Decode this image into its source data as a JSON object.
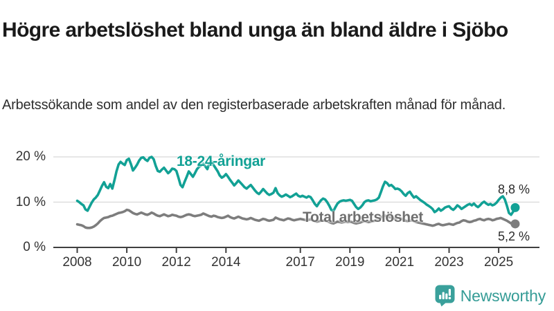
{
  "header": {
    "title": "Högre arbetslöshet bland unga än bland äldre i Sjöbo",
    "subtitle": "Arbetssökande som andel av den registerbaserade arbetskraften månad för månad."
  },
  "branding": {
    "logo_text": "Newsworthy",
    "logo_icon": "bar-chart-speech-bubble-icon",
    "logo_color": "#3aa09b"
  },
  "colors": {
    "youth_line": "#12a195",
    "total_line": "#7d7d7d",
    "total_label": "#6f6f6f",
    "grid": "#dedede",
    "axis": "#3f3f3f",
    "text": "#333333"
  },
  "chart_data": {
    "type": "line",
    "x_unit": "month",
    "x_start": "2008-01",
    "x_end": "2025-09",
    "x_ticks": [
      2008,
      2010,
      2012,
      2014,
      2017,
      2019,
      2021,
      2023,
      2025
    ],
    "y_ticks": [
      {
        "value": 0,
        "label": "0 %"
      },
      {
        "value": 10,
        "label": "10 %"
      },
      {
        "value": 20,
        "label": "20 %"
      }
    ],
    "ylim": [
      0,
      21
    ],
    "grid": "horizontal",
    "legend_position": "inline-labels",
    "series": [
      {
        "name": "18-24-åringar",
        "color": "#12a195",
        "end_label": "8,8 %",
        "end_value": 8.8,
        "values": [
          10.3,
          10.0,
          9.6,
          9.3,
          8.4,
          8.1,
          9.0,
          9.9,
          10.6,
          11.0,
          11.6,
          12.6,
          13.6,
          14.4,
          13.4,
          13.1,
          14.0,
          13.0,
          14.8,
          16.8,
          18.3,
          18.9,
          18.5,
          18.2,
          19.3,
          19.6,
          18.4,
          17.0,
          17.6,
          18.3,
          19.2,
          19.8,
          19.9,
          19.4,
          19.1,
          19.8,
          20.0,
          19.5,
          18.0,
          16.9,
          16.7,
          17.2,
          17.6,
          17.0,
          16.4,
          16.8,
          17.4,
          17.3,
          16.9,
          15.4,
          13.8,
          13.3,
          14.5,
          15.6,
          16.8,
          16.2,
          15.6,
          16.4,
          17.3,
          17.8,
          18.1,
          18.5,
          17.9,
          17.3,
          18.6,
          19.0,
          18.2,
          17.5,
          16.8,
          15.9,
          15.4,
          15.7,
          16.2,
          15.6,
          14.9,
          14.3,
          13.7,
          14.2,
          14.8,
          14.3,
          13.8,
          13.3,
          13.0,
          13.4,
          13.8,
          13.2,
          12.6,
          12.1,
          11.8,
          12.3,
          12.9,
          12.4,
          11.9,
          11.6,
          11.8,
          12.1,
          13.1,
          12.0,
          11.5,
          11.2,
          11.4,
          11.7,
          11.4,
          11.1,
          11.3,
          11.6,
          11.9,
          11.4,
          11.2,
          11.4,
          11.2,
          11.0,
          11.3,
          11.1,
          10.4,
          9.6,
          9.1,
          9.8,
          10.4,
          10.8,
          10.6,
          10.0,
          9.2,
          8.3,
          8.0,
          8.9,
          9.7,
          10.1,
          10.3,
          10.4,
          10.3,
          10.4,
          10.5,
          10.3,
          9.6,
          8.9,
          8.5,
          8.8,
          9.3,
          10.0,
          10.3,
          10.4,
          10.2,
          10.3,
          10.4,
          10.6,
          11.0,
          12.2,
          13.5,
          14.5,
          14.2,
          13.6,
          13.8,
          13.4,
          12.9,
          13.0,
          12.8,
          12.4,
          11.8,
          11.4,
          12.0,
          12.3,
          11.6,
          11.0,
          11.3,
          10.9,
          10.5,
          10.2,
          9.9,
          9.5,
          9.2,
          8.9,
          8.5,
          7.8,
          8.1,
          8.6,
          8.1,
          8.4,
          8.8,
          9.0,
          9.1,
          8.6,
          8.3,
          8.7,
          9.3,
          9.0,
          8.5,
          8.8,
          9.1,
          9.4,
          9.6,
          9.3,
          9.7,
          9.2,
          8.9,
          9.3,
          9.8,
          10.1,
          9.7,
          9.4,
          9.6,
          9.3,
          9.5,
          9.9,
          10.5,
          11.0,
          11.3,
          10.6,
          9.2,
          7.6,
          7.2,
          7.9,
          8.8
        ]
      },
      {
        "name": "Total arbetslöshet",
        "color": "#7d7d7d",
        "end_label": "5,2 %",
        "end_value": 5.2,
        "values": [
          5.1,
          5.0,
          4.9,
          4.7,
          4.4,
          4.3,
          4.3,
          4.4,
          4.6,
          4.9,
          5.3,
          5.8,
          6.2,
          6.5,
          6.6,
          6.7,
          6.9,
          7.0,
          7.2,
          7.4,
          7.6,
          7.7,
          7.8,
          8.0,
          8.3,
          8.2,
          7.9,
          7.6,
          7.4,
          7.3,
          7.5,
          7.7,
          7.5,
          7.3,
          7.2,
          7.4,
          7.7,
          7.5,
          7.2,
          7.0,
          6.9,
          7.1,
          7.3,
          7.1,
          6.9,
          7.0,
          7.2,
          7.1,
          7.0,
          6.8,
          6.7,
          6.8,
          7.0,
          7.2,
          7.3,
          7.2,
          7.0,
          6.9,
          7.0,
          7.1,
          7.2,
          7.5,
          7.3,
          7.1,
          6.9,
          6.8,
          7.0,
          6.9,
          6.7,
          6.6,
          6.5,
          6.6,
          6.8,
          7.0,
          6.7,
          6.5,
          6.4,
          6.6,
          6.8,
          6.6,
          6.4,
          6.3,
          6.2,
          6.3,
          6.5,
          6.3,
          6.1,
          6.0,
          5.9,
          6.1,
          6.3,
          6.2,
          6.0,
          5.9,
          6.0,
          6.1,
          6.6,
          6.4,
          6.2,
          6.1,
          6.0,
          6.2,
          6.4,
          6.3,
          6.1,
          6.0,
          6.1,
          6.2,
          6.3,
          6.2,
          6.1,
          6.0,
          6.1,
          6.2,
          6.0,
          5.8,
          5.7,
          5.8,
          5.9,
          6.0,
          5.9,
          5.8,
          5.6,
          5.4,
          5.3,
          5.5,
          5.7,
          5.6,
          5.5,
          5.6,
          5.7,
          5.6,
          5.7,
          5.6,
          5.4,
          5.3,
          5.4,
          5.5,
          5.7,
          5.8,
          5.7,
          5.6,
          5.7,
          5.8,
          5.9,
          6.0,
          6.2,
          6.6,
          6.9,
          7.0,
          6.9,
          6.7,
          6.6,
          6.4,
          6.3,
          6.4,
          6.5,
          6.3,
          6.1,
          5.9,
          5.8,
          5.9,
          6.0,
          5.8,
          5.6,
          5.5,
          5.4,
          5.3,
          5.2,
          5.1,
          5.0,
          4.9,
          4.8,
          4.9,
          5.1,
          5.2,
          5.0,
          4.9,
          5.0,
          5.1,
          5.2,
          5.1,
          5.0,
          5.2,
          5.4,
          5.5,
          5.8,
          6.0,
          5.9,
          5.7,
          5.6,
          5.7,
          5.9,
          6.0,
          6.2,
          6.3,
          6.1,
          6.0,
          6.2,
          6.3,
          6.2,
          6.0,
          6.1,
          6.3,
          6.4,
          6.5,
          6.3,
          6.1,
          5.9,
          5.6,
          5.3,
          5.2,
          5.2
        ]
      }
    ]
  }
}
